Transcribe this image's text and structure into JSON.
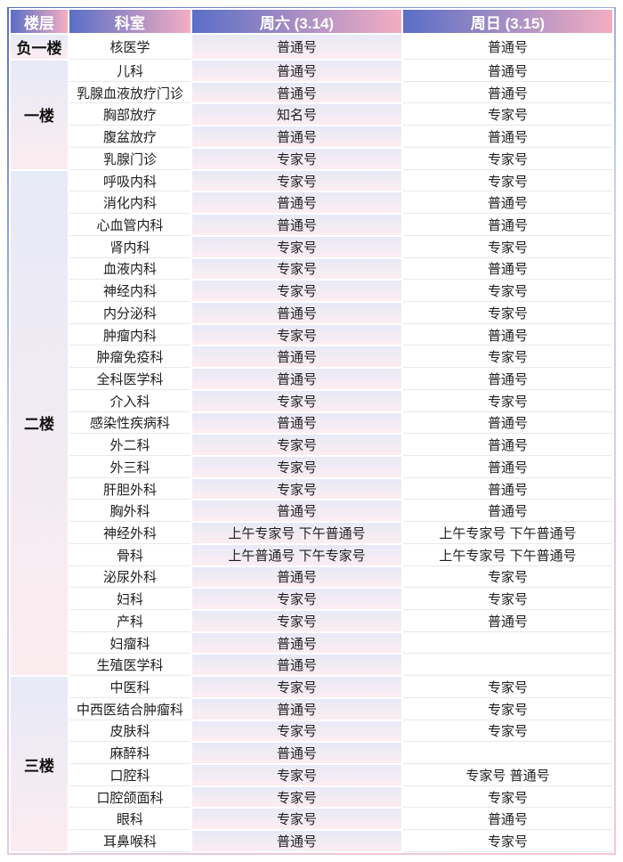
{
  "colors": {
    "header_gradient_left": "#5a6ec6",
    "header_gradient_right": "#f3aec2",
    "header_text": "#ffffff",
    "saturday_cell_top": "#e8eaf7",
    "saturday_cell_bottom": "#fcedf1",
    "floor_cell_top": "#e7eaf7",
    "floor_cell_bottom": "#fbecef",
    "body_text": "#1f1f1f"
  },
  "table": {
    "headers": [
      "楼层",
      "科室",
      "周六 (3.14)",
      "周日 (3.15)"
    ],
    "floors": [
      {
        "label": "负一楼",
        "rows": [
          {
            "dept": "核医学",
            "sat": "普通号",
            "sun": "普通号"
          }
        ]
      },
      {
        "label": "一楼",
        "rows": [
          {
            "dept": "儿科",
            "sat": "普通号",
            "sun": "普通号"
          },
          {
            "dept": "乳腺血液放疗门诊",
            "sat": "普通号",
            "sun": "普通号"
          },
          {
            "dept": "胸部放疗",
            "sat": "知名号",
            "sun": "专家号"
          },
          {
            "dept": "腹盆放疗",
            "sat": "普通号",
            "sun": "普通号"
          },
          {
            "dept": "乳腺门诊",
            "sat": "专家号",
            "sun": "专家号"
          }
        ]
      },
      {
        "label": "二楼",
        "rows": [
          {
            "dept": "呼吸内科",
            "sat": "专家号",
            "sun": "专家号"
          },
          {
            "dept": "消化内科",
            "sat": "普通号",
            "sun": "普通号"
          },
          {
            "dept": "心血管内科",
            "sat": "普通号",
            "sun": "普通号"
          },
          {
            "dept": "肾内科",
            "sat": "专家号",
            "sun": "专家号"
          },
          {
            "dept": "血液内科",
            "sat": "专家号",
            "sun": "普通号"
          },
          {
            "dept": "神经内科",
            "sat": "专家号",
            "sun": "专家号"
          },
          {
            "dept": "内分泌科",
            "sat": "普通号",
            "sun": "专家号"
          },
          {
            "dept": "肿瘤内科",
            "sat": "专家号",
            "sun": "普通号"
          },
          {
            "dept": "肿瘤免疫科",
            "sat": "普通号",
            "sun": "专家号"
          },
          {
            "dept": "全科医学科",
            "sat": "普通号",
            "sun": "普通号"
          },
          {
            "dept": "介入科",
            "sat": "专家号",
            "sun": "专家号"
          },
          {
            "dept": "感染性疾病科",
            "sat": "普通号",
            "sun": "普通号"
          },
          {
            "dept": "外二科",
            "sat": "专家号",
            "sun": "普通号"
          },
          {
            "dept": "外三科",
            "sat": "专家号",
            "sun": "普通号"
          },
          {
            "dept": "肝胆外科",
            "sat": "专家号",
            "sun": "普通号"
          },
          {
            "dept": "胸外科",
            "sat": "普通号",
            "sun": "普通号"
          },
          {
            "dept": "神经外科",
            "sat": "上午专家号 下午普通号",
            "sun": "上午专家号 下午普通号"
          },
          {
            "dept": "骨科",
            "sat": "上午普通号 下午专家号",
            "sun": "上午专家号 下午普通号"
          },
          {
            "dept": "泌尿外科",
            "sat": "普通号",
            "sun": "专家号"
          },
          {
            "dept": "妇科",
            "sat": "专家号",
            "sun": "专家号"
          },
          {
            "dept": "产科",
            "sat": "专家号",
            "sun": "普通号"
          },
          {
            "dept": "妇瘤科",
            "sat": "普通号",
            "sun": ""
          },
          {
            "dept": "生殖医学科",
            "sat": "普通号",
            "sun": ""
          }
        ]
      },
      {
        "label": "三楼",
        "rows": [
          {
            "dept": "中医科",
            "sat": "专家号",
            "sun": "专家号"
          },
          {
            "dept": "中西医结合肿瘤科",
            "sat": "普通号",
            "sun": "专家号"
          },
          {
            "dept": "皮肤科",
            "sat": "专家号",
            "sun": "专家号"
          },
          {
            "dept": "麻醉科",
            "sat": "普通号",
            "sun": ""
          },
          {
            "dept": "口腔科",
            "sat": "专家号",
            "sun": "专家号 普通号"
          },
          {
            "dept": "口腔颌面科",
            "sat": "专家号",
            "sun": "专家号"
          },
          {
            "dept": "眼科",
            "sat": "专家号",
            "sun": "普通号"
          },
          {
            "dept": "耳鼻喉科",
            "sat": "普通号",
            "sun": "专家号"
          }
        ]
      }
    ]
  }
}
